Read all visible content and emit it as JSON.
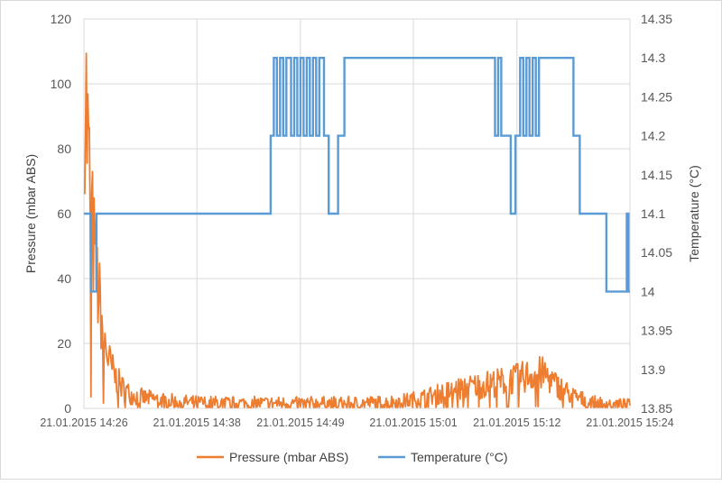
{
  "chart_data": {
    "type": "line",
    "x_start": "21.01.2015 14:26",
    "x_end": "21.01.2015 15:24",
    "x_ticks": [
      "21.01.2015 14:26",
      "21.01.2015 14:38",
      "21.01.2015 14:49",
      "21.01.2015 15:01",
      "21.01.2015 15:12",
      "21.01.2015 15:24"
    ],
    "y_left": {
      "label": "Pressure  (mbar ABS)",
      "ticks": [
        "0",
        "20",
        "40",
        "60",
        "80",
        "100",
        "120"
      ],
      "ylim": [
        0,
        120
      ]
    },
    "y_right": {
      "label": "Temperature (°C)",
      "ticks": [
        "13.85",
        "13.9",
        "13.95",
        "14",
        "14.05",
        "14.1",
        "14.15",
        "14.2",
        "14.25",
        "14.3",
        "14.35"
      ],
      "ylim": [
        13.85,
        14.35
      ]
    },
    "grid": "vertical-and-horizontal",
    "legend": {
      "position": "bottom"
    },
    "series": [
      {
        "name": "Pressure (mbar ABS)",
        "axis": "left",
        "color": "#ED7D31",
        "x": [
          "21.01.2015 14:26:05",
          "21.01.2015 14:26:20",
          "21.01.2015 14:26:35",
          "21.01.2015 14:26:50",
          "21.01.2015 14:27:10",
          "21.01.2015 14:27:30",
          "21.01.2015 14:27:50",
          "21.01.2015 14:28:10",
          "21.01.2015 14:28:40",
          "21.01.2015 14:29:20",
          "21.01.2015 14:30:00",
          "21.01.2015 14:31:00",
          "21.01.2015 14:32:30",
          "21.01.2015 14:35:00",
          "21.01.2015 14:38:00",
          "21.01.2015 14:42:00",
          "21.01.2015 14:46:00",
          "21.01.2015 14:50:00",
          "21.01.2015 14:54:00",
          "21.01.2015 14:58:00",
          "21.01.2015 15:00:00",
          "21.01.2015 15:02:00",
          "21.01.2015 15:04:00",
          "21.01.2015 15:06:00",
          "21.01.2015 15:08:00",
          "21.01.2015 15:10:00",
          "21.01.2015 15:12:00",
          "21.01.2015 15:13:00",
          "21.01.2015 15:14:00",
          "21.01.2015 15:15:00",
          "21.01.2015 15:16:00",
          "21.01.2015 15:18:00",
          "21.01.2015 15:20:00",
          "21.01.2015 15:22:00",
          "21.01.2015 15:24:00"
        ],
        "values": [
          110,
          90,
          72,
          60,
          47,
          38,
          30,
          22,
          15,
          10,
          7,
          4.5,
          3.5,
          2.5,
          2,
          1.8,
          1.8,
          1.8,
          1.8,
          2,
          2.5,
          3.5,
          5,
          6.5,
          7.5,
          8.5,
          9.5,
          10.5,
          11.5,
          11,
          8,
          4,
          2,
          1.5,
          1.2
        ],
        "noise": 1.5
      },
      {
        "name": "Temperature (°C)",
        "axis": "right",
        "color": "#5B9BD5",
        "segments": [
          [
            "21.01.2015 14:26:00",
            14.1
          ],
          [
            "21.01.2015 14:26:45",
            14.0
          ],
          [
            "21.01.2015 14:27:20",
            14.1
          ],
          [
            "21.01.2015 14:37:30",
            14.1
          ],
          [
            "21.01.2015 14:38:30",
            14.1
          ],
          [
            "21.01.2015 14:45:50",
            14.2
          ],
          [
            "21.01.2015 14:46:10",
            14.3
          ],
          [
            "21.01.2015 14:46:30",
            14.2
          ],
          [
            "21.01.2015 14:46:50",
            14.3
          ],
          [
            "21.01.2015 14:47:10",
            14.2
          ],
          [
            "21.01.2015 14:47:30",
            14.3
          ],
          [
            "21.01.2015 14:48:00",
            14.2
          ],
          [
            "21.01.2015 14:48:20",
            14.3
          ],
          [
            "21.01.2015 14:48:40",
            14.2
          ],
          [
            "21.01.2015 14:49:00",
            14.3
          ],
          [
            "21.01.2015 14:49:20",
            14.2
          ],
          [
            "21.01.2015 14:49:40",
            14.3
          ],
          [
            "21.01.2015 14:50:00",
            14.2
          ],
          [
            "21.01.2015 14:50:20",
            14.3
          ],
          [
            "21.01.2015 14:50:40",
            14.2
          ],
          [
            "21.01.2015 14:51:00",
            14.3
          ],
          [
            "21.01.2015 14:51:30",
            14.2
          ],
          [
            "21.01.2015 14:52:00",
            14.1
          ],
          [
            "21.01.2015 14:53:00",
            14.2
          ],
          [
            "21.01.2015 14:53:40",
            14.3
          ],
          [
            "21.01.2015 15:09:40",
            14.2
          ],
          [
            "21.01.2015 15:10:00",
            14.3
          ],
          [
            "21.01.2015 15:10:20",
            14.2
          ],
          [
            "21.01.2015 15:11:20",
            14.1
          ],
          [
            "21.01.2015 15:11:50",
            14.2
          ],
          [
            "21.01.2015 15:12:20",
            14.3
          ],
          [
            "21.01.2015 15:12:40",
            14.2
          ],
          [
            "21.01.2015 15:13:00",
            14.3
          ],
          [
            "21.01.2015 15:13:20",
            14.2
          ],
          [
            "21.01.2015 15:13:40",
            14.3
          ],
          [
            "21.01.2015 15:14:00",
            14.2
          ],
          [
            "21.01.2015 15:14:20",
            14.3
          ],
          [
            "21.01.2015 15:18:00",
            14.2
          ],
          [
            "21.01.2015 15:18:40",
            14.1
          ],
          [
            "21.01.2015 15:21:30",
            14.0
          ],
          [
            "21.01.2015 15:23:40",
            14.1
          ],
          [
            "21.01.2015 15:23:50",
            14.0
          ]
        ]
      }
    ]
  }
}
